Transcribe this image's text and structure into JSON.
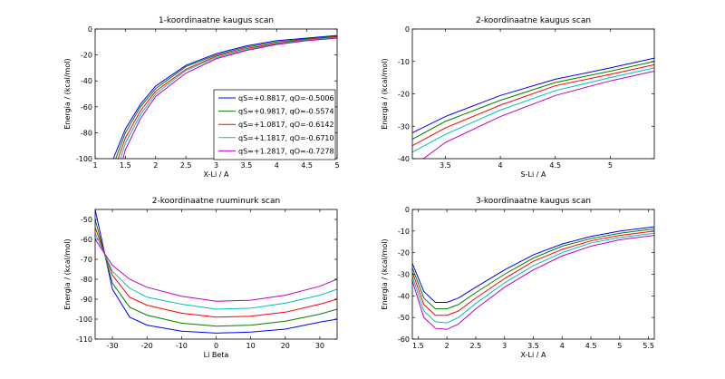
{
  "chart_data": [
    {
      "type": "line",
      "title": "1-koordinaatne kaugus scan",
      "xlabel": "X-Li / A",
      "ylabel": "Energia / (kcal/mol)",
      "xlim": [
        1,
        5
      ],
      "ylim": [
        -100,
        0
      ],
      "xticks": [
        1,
        1.5,
        2,
        2.5,
        3,
        3.5,
        4,
        4.5,
        5
      ],
      "yticks": [
        -100,
        -80,
        -60,
        -40,
        -20,
        0
      ],
      "xtick_labels": [
        "1",
        "1.5",
        "2",
        "2.5",
        "3",
        "3.5",
        "4",
        "4.5",
        "5"
      ],
      "ytick_labels": [
        "-100",
        "-80",
        "-60",
        "-40",
        "-20",
        "0"
      ],
      "legend": "top-right-inside",
      "grid": false,
      "series": [
        {
          "name": "qS=+0.8817, qO=-0.5006",
          "color": "#0000ff",
          "x": [
            1.3,
            1.5,
            1.75,
            2.0,
            2.5,
            3.0,
            3.5,
            4.0,
            4.5,
            5.0
          ],
          "y": [
            -100,
            -77,
            -58,
            -44,
            -28,
            -19,
            -13,
            -9,
            -7,
            -5
          ]
        },
        {
          "name": "qS=+0.9817, qO=-0.5574",
          "color": "#008000",
          "x": [
            1.34,
            1.5,
            1.75,
            2.0,
            2.5,
            3.0,
            3.5,
            4.0,
            4.5,
            5.0
          ],
          "y": [
            -100,
            -80,
            -60,
            -46,
            -29,
            -20,
            -14,
            -10,
            -7.5,
            -5.5
          ]
        },
        {
          "name": "qS=+1.0817, qO=-0.6142",
          "color": "#ff0000",
          "x": [
            1.38,
            1.5,
            1.75,
            2.0,
            2.5,
            3.0,
            3.5,
            4.0,
            4.5,
            5.0
          ],
          "y": [
            -100,
            -84,
            -63,
            -48,
            -31,
            -21,
            -15,
            -11,
            -8,
            -6
          ]
        },
        {
          "name": "qS=+1.1817, qO=-0.6710",
          "color": "#00bfbf",
          "x": [
            1.42,
            1.5,
            1.75,
            2.0,
            2.5,
            3.0,
            3.5,
            4.0,
            4.5,
            5.0
          ],
          "y": [
            -100,
            -88,
            -66,
            -50,
            -32,
            -22,
            -16,
            -11.5,
            -8.5,
            -6.5
          ]
        },
        {
          "name": "qS=+1.2817, qO=-0.7278",
          "color": "#bf00bf",
          "x": [
            1.46,
            1.5,
            1.75,
            2.0,
            2.5,
            3.0,
            3.5,
            4.0,
            4.5,
            5.0
          ],
          "y": [
            -100,
            -93,
            -69,
            -52,
            -34,
            -23,
            -16.5,
            -12,
            -9,
            -7
          ]
        }
      ]
    },
    {
      "type": "line",
      "title": "2-koordinaatne kaugus scan",
      "xlabel": "S-Li / A",
      "ylabel": "Energia / (kcal/mol)",
      "xlim": [
        3.2,
        5.4
      ],
      "ylim": [
        -40,
        0
      ],
      "xticks": [
        3.5,
        4,
        4.5,
        5
      ],
      "yticks": [
        -40,
        -30,
        -20,
        -10,
        0
      ],
      "xtick_labels": [
        "3.5",
        "4",
        "4.5",
        "5"
      ],
      "ytick_labels": [
        "-40",
        "-30",
        "-20",
        "-10",
        "0"
      ],
      "grid": false,
      "series": [
        {
          "color": "#0000ff",
          "x": [
            3.2,
            3.5,
            4.0,
            4.5,
            5.0,
            5.4
          ],
          "y": [
            -32,
            -27,
            -20.5,
            -15.5,
            -12,
            -9
          ]
        },
        {
          "color": "#008000",
          "x": [
            3.2,
            3.5,
            4.0,
            4.5,
            5.0,
            5.4
          ],
          "y": [
            -34,
            -28.5,
            -22,
            -16.5,
            -13,
            -10
          ]
        },
        {
          "color": "#ff0000",
          "x": [
            3.2,
            3.5,
            4.0,
            4.5,
            5.0,
            5.4
          ],
          "y": [
            -36,
            -30.5,
            -23.5,
            -17.5,
            -14,
            -11
          ]
        },
        {
          "color": "#00bfbf",
          "x": [
            3.2,
            3.5,
            4.0,
            4.5,
            5.0,
            5.4
          ],
          "y": [
            -38,
            -32.5,
            -25,
            -19,
            -15,
            -12
          ]
        },
        {
          "color": "#bf00bf",
          "x": [
            3.3,
            3.5,
            4.0,
            4.5,
            5.0,
            5.4
          ],
          "y": [
            -40,
            -35,
            -27,
            -20.5,
            -16,
            -13
          ]
        }
      ]
    },
    {
      "type": "line",
      "title": "2-koordinaatne ruuminurk scan",
      "xlabel": "Li Beta",
      "ylabel": "Energia / (kcal/mol)",
      "xlim": [
        -35,
        35
      ],
      "ylim": [
        -110,
        -45
      ],
      "xticks": [
        -30,
        -20,
        -10,
        0,
        10,
        20,
        30
      ],
      "yticks": [
        -110,
        -100,
        -90,
        -80,
        -70,
        -60,
        -50
      ],
      "xtick_labels": [
        "-30",
        "-20",
        "-10",
        "0",
        "10",
        "20",
        "30"
      ],
      "ytick_labels": [
        "-110",
        "-100",
        "-90",
        "-80",
        "-70",
        "-60",
        "-50"
      ],
      "grid": false,
      "series": [
        {
          "color": "#0000ff",
          "x": [
            -35,
            -30,
            -25,
            -20,
            -10,
            0,
            10,
            20,
            30,
            35
          ],
          "y": [
            -45,
            -85,
            -99,
            -103,
            -106,
            -107,
            -106.5,
            -105,
            -101.5,
            -100
          ]
        },
        {
          "color": "#008000",
          "x": [
            -35,
            -30,
            -25,
            -20,
            -10,
            0,
            10,
            20,
            30,
            35
          ],
          "y": [
            -50,
            -82,
            -94,
            -98,
            -102,
            -103.5,
            -103,
            -101,
            -97.5,
            -95
          ]
        },
        {
          "color": "#ff0000",
          "x": [
            -35,
            -30,
            -25,
            -20,
            -10,
            0,
            10,
            20,
            30,
            35
          ],
          "y": [
            -54,
            -78,
            -89,
            -93,
            -97,
            -99,
            -98.5,
            -96.5,
            -92.5,
            -90
          ]
        },
        {
          "color": "#00bfbf",
          "x": [
            -35,
            -30,
            -25,
            -20,
            -10,
            0,
            10,
            20,
            30,
            35
          ],
          "y": [
            -57,
            -76,
            -84.5,
            -89,
            -92.5,
            -95,
            -94.5,
            -92,
            -88,
            -85
          ]
        },
        {
          "color": "#bf00bf",
          "x": [
            -35,
            -30,
            -25,
            -20,
            -10,
            0,
            10,
            20,
            30,
            35
          ],
          "y": [
            -60,
            -73,
            -80,
            -84,
            -88.5,
            -91,
            -90.5,
            -88,
            -83.5,
            -80
          ]
        }
      ]
    },
    {
      "type": "line",
      "title": "3-koordinaatne kaugus scan",
      "xlabel": "X-Li / A",
      "ylabel": "Energia / (kcal/mol)",
      "xlim": [
        1.4,
        5.6
      ],
      "ylim": [
        -60,
        0
      ],
      "xticks": [
        1.5,
        2,
        2.5,
        3,
        3.5,
        4,
        4.5,
        5,
        5.5
      ],
      "yticks": [
        -60,
        -50,
        -40,
        -30,
        -20,
        -10,
        0
      ],
      "xtick_labels": [
        "1.5",
        "2",
        "2.5",
        "3",
        "3.5",
        "4",
        "4.5",
        "5",
        "5.5"
      ],
      "ytick_labels": [
        "-60",
        "-50",
        "-40",
        "-30",
        "-20",
        "-10",
        "0"
      ],
      "grid": false,
      "series": [
        {
          "color": "#0000ff",
          "x": [
            1.4,
            1.6,
            1.8,
            2.0,
            2.2,
            2.5,
            3.0,
            3.5,
            4.0,
            4.5,
            5.0,
            5.6
          ],
          "y": [
            -25,
            -38,
            -43,
            -43,
            -41,
            -36,
            -28,
            -21,
            -16,
            -12.5,
            -10,
            -8
          ]
        },
        {
          "color": "#008000",
          "x": [
            1.4,
            1.6,
            1.8,
            2.0,
            2.2,
            2.5,
            3.0,
            3.5,
            4.0,
            4.5,
            5.0,
            5.6
          ],
          "y": [
            -27,
            -41,
            -46,
            -46,
            -44,
            -38.5,
            -30,
            -22.5,
            -17,
            -13.5,
            -11,
            -9
          ]
        },
        {
          "color": "#ff0000",
          "x": [
            1.4,
            1.6,
            1.8,
            2.0,
            2.2,
            2.5,
            3.0,
            3.5,
            4.0,
            4.5,
            5.0,
            5.6
          ],
          "y": [
            -29,
            -44,
            -49,
            -49,
            -47,
            -41,
            -32,
            -24,
            -18.5,
            -14.5,
            -12,
            -10
          ]
        },
        {
          "color": "#00bfbf",
          "x": [
            1.4,
            1.6,
            1.8,
            2.0,
            2.2,
            2.5,
            3.0,
            3.5,
            4.0,
            4.5,
            5.0,
            5.6
          ],
          "y": [
            -31,
            -47,
            -52,
            -52.5,
            -50,
            -43.5,
            -34,
            -26,
            -20,
            -15.5,
            -13,
            -11
          ]
        },
        {
          "color": "#bf00bf",
          "x": [
            1.4,
            1.6,
            1.8,
            2.0,
            2.2,
            2.5,
            3.0,
            3.5,
            4.0,
            4.5,
            5.0,
            5.6
          ],
          "y": [
            -33,
            -50,
            -55,
            -55.5,
            -53,
            -46,
            -36,
            -28,
            -21.5,
            -17,
            -14,
            -12
          ]
        }
      ]
    }
  ]
}
